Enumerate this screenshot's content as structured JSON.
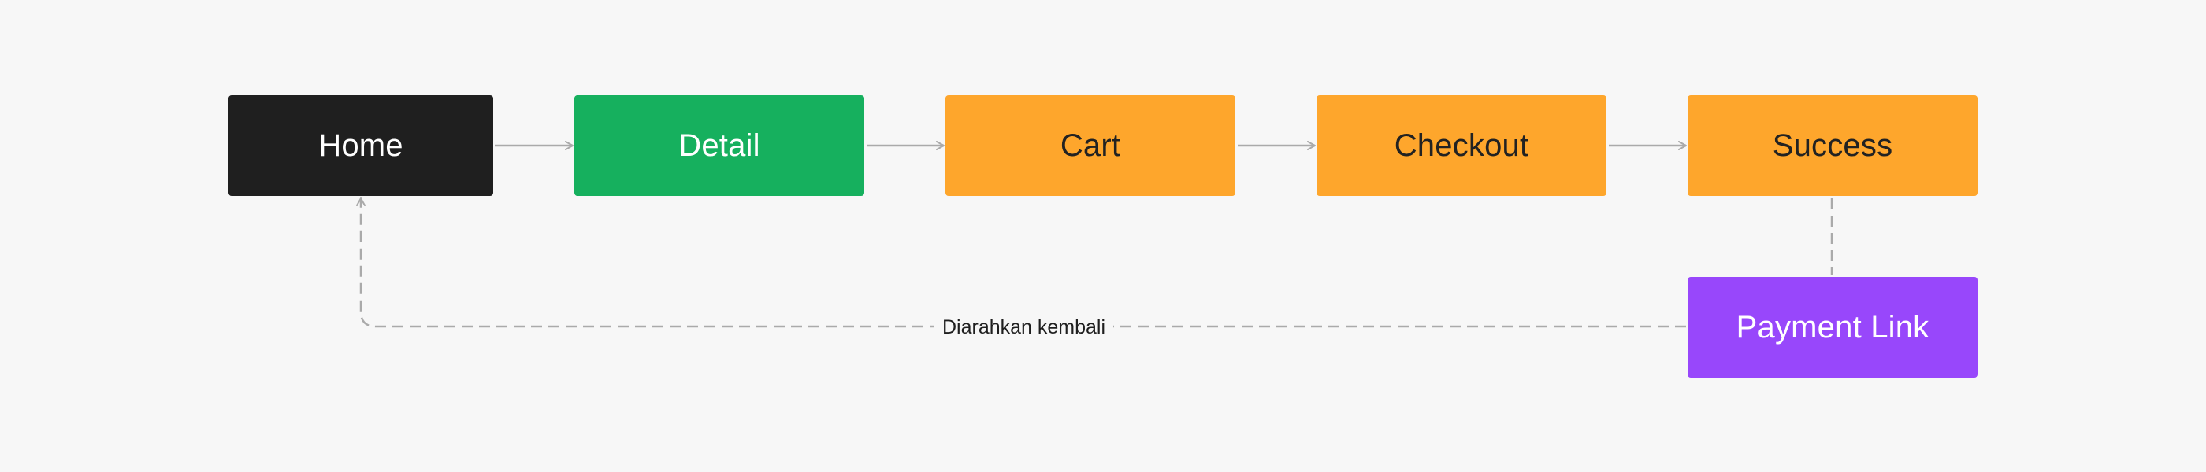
{
  "nodes": [
    {
      "id": "home",
      "label": "Home",
      "color": "#1f1f1f",
      "text_color": "#ffffff"
    },
    {
      "id": "detail",
      "label": "Detail",
      "color": "#16b05e",
      "text_color": "#ffffff"
    },
    {
      "id": "cart",
      "label": "Cart",
      "color": "#fea62c",
      "text_color": "#222222"
    },
    {
      "id": "checkout",
      "label": "Checkout",
      "color": "#fea62c",
      "text_color": "#222222"
    },
    {
      "id": "success",
      "label": "Success",
      "color": "#fea62c",
      "text_color": "#222222"
    },
    {
      "id": "payment-link",
      "label": "Payment Link",
      "color": "#9847fb",
      "text_color": "#ffffff"
    }
  ],
  "edges": [
    {
      "from": "home",
      "to": "detail",
      "style": "solid"
    },
    {
      "from": "detail",
      "to": "cart",
      "style": "solid"
    },
    {
      "from": "cart",
      "to": "checkout",
      "style": "solid"
    },
    {
      "from": "checkout",
      "to": "success",
      "style": "solid"
    },
    {
      "from": "success",
      "to": "payment-link",
      "style": "dashed"
    },
    {
      "from": "payment-link",
      "to": "home",
      "style": "dashed",
      "label": "Diarahkan kembali"
    }
  ],
  "colors": {
    "background": "#f7f7f7",
    "connector": "#aaaaaa"
  }
}
